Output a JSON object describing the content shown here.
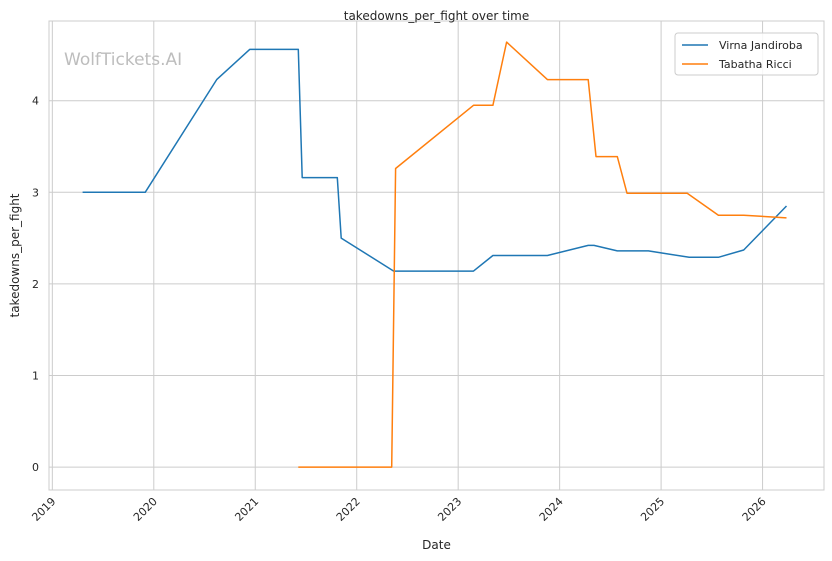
{
  "chart_data": {
    "type": "line",
    "title": "takedowns_per_fight over time",
    "xlabel": "Date",
    "ylabel": "takedowns_per_fight",
    "watermark": "WolfTickets.AI",
    "x_ticks": [
      "2019",
      "2020",
      "2021",
      "2022",
      "2023",
      "2024",
      "2025",
      "2026"
    ],
    "y_ticks": [
      "0",
      "1",
      "2",
      "3",
      "4"
    ],
    "xlim": [
      "2018-12-20",
      "2026-08-10"
    ],
    "ylim": [
      -0.25,
      4.87
    ],
    "grid": true,
    "legend_position": "top-right",
    "series": [
      {
        "name": "Virna Jandiroba",
        "color": "#1f77b4",
        "points": [
          [
            "2019-04-20",
            3.0
          ],
          [
            "2019-12-01",
            3.0
          ],
          [
            "2020-08-15",
            4.23
          ],
          [
            "2020-12-12",
            4.56
          ],
          [
            "2021-06-05",
            4.56
          ],
          [
            "2021-06-19",
            3.16
          ],
          [
            "2021-10-23",
            3.16
          ],
          [
            "2021-11-06",
            2.5
          ],
          [
            "2022-05-14",
            2.14
          ],
          [
            "2023-02-25",
            2.14
          ],
          [
            "2023-05-06",
            2.31
          ],
          [
            "2023-11-18",
            2.31
          ],
          [
            "2024-04-13",
            2.42
          ],
          [
            "2024-05-04",
            2.42
          ],
          [
            "2024-07-27",
            2.36
          ],
          [
            "2024-11-16",
            2.36
          ],
          [
            "2025-04-12",
            2.29
          ],
          [
            "2025-07-26",
            2.29
          ],
          [
            "2025-10-25",
            2.37
          ],
          [
            "2026-03-28",
            2.85
          ]
        ]
      },
      {
        "name": "Tabatha Ricci",
        "color": "#ff7f0e",
        "points": [
          [
            "2021-06-05",
            0.0
          ],
          [
            "2022-05-07",
            0.0
          ],
          [
            "2022-05-21",
            3.26
          ],
          [
            "2023-02-25",
            3.95
          ],
          [
            "2023-05-06",
            3.95
          ],
          [
            "2023-06-24",
            4.64
          ],
          [
            "2023-11-18",
            4.23
          ],
          [
            "2024-04-13",
            4.23
          ],
          [
            "2024-05-11",
            3.39
          ],
          [
            "2024-07-27",
            3.39
          ],
          [
            "2024-08-31",
            2.99
          ],
          [
            "2025-04-05",
            2.99
          ],
          [
            "2025-07-26",
            2.75
          ],
          [
            "2025-10-25",
            2.75
          ],
          [
            "2026-03-28",
            2.72
          ]
        ]
      }
    ]
  }
}
